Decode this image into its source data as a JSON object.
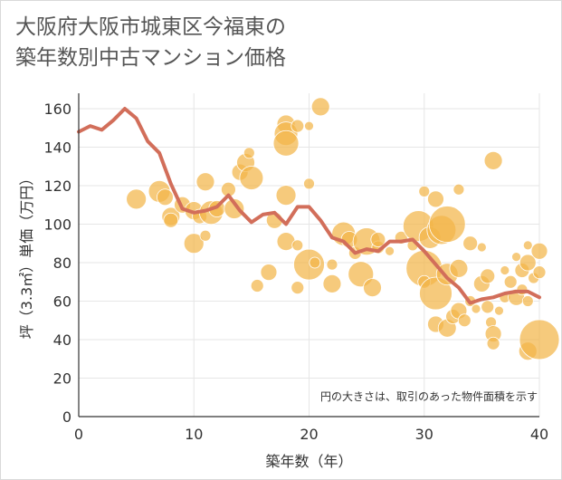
{
  "title_line1": "大阪府大阪市城東区今福東の",
  "title_line2": "築年数別中古マンション価格",
  "colors": {
    "bubble": "#f3b54a",
    "line": "#d26e5a",
    "grid": "#e6e6e6",
    "axis": "#333333"
  },
  "chart_data": {
    "type": "scatter",
    "title": "大阪府大阪市城東区今福東の 築年数別中古マンション価格",
    "xlabel": "築年数（年）",
    "ylabel": "坪（3.3㎡）単価（万円）",
    "xlim": [
      0,
      40
    ],
    "ylim": [
      0,
      168
    ],
    "xticks": [
      "0",
      "10",
      "20",
      "30",
      "40"
    ],
    "yticks": [
      "0",
      "20",
      "40",
      "60",
      "80",
      "100",
      "120",
      "140",
      "160"
    ],
    "grid": true,
    "annotation": "円の大きさは、取引のあった物件面積を示す",
    "line_series": {
      "x": [
        0,
        1,
        2,
        3,
        4,
        5,
        6,
        7,
        8,
        9,
        10,
        11,
        12,
        13,
        14,
        15,
        16,
        17,
        18,
        19,
        20,
        21,
        22,
        23,
        24,
        25,
        26,
        27,
        28,
        29,
        30,
        31,
        32,
        33,
        34,
        35,
        36,
        37,
        38,
        39,
        40
      ],
      "y": [
        148,
        151,
        149,
        154,
        160,
        155,
        143,
        137,
        121,
        108,
        106,
        107,
        109,
        115,
        107,
        101,
        105,
        106,
        100,
        109,
        109,
        102,
        93,
        91,
        85,
        87,
        86,
        91,
        91,
        92,
        86,
        79,
        72,
        67,
        59,
        61,
        62,
        64,
        65,
        65,
        62
      ]
    },
    "bubbles": [
      {
        "x": 5,
        "y": 113,
        "s": 11
      },
      {
        "x": 7,
        "y": 117,
        "s": 12
      },
      {
        "x": 7.5,
        "y": 114,
        "s": 9
      },
      {
        "x": 8,
        "y": 104,
        "s": 10
      },
      {
        "x": 8,
        "y": 102,
        "s": 8
      },
      {
        "x": 9,
        "y": 110,
        "s": 9
      },
      {
        "x": 10,
        "y": 107,
        "s": 10
      },
      {
        "x": 10,
        "y": 90,
        "s": 11
      },
      {
        "x": 10.5,
        "y": 104,
        "s": 8
      },
      {
        "x": 11,
        "y": 122,
        "s": 10
      },
      {
        "x": 11,
        "y": 94,
        "s": 6
      },
      {
        "x": 11.5,
        "y": 106,
        "s": 13
      },
      {
        "x": 12,
        "y": 108,
        "s": 9
      },
      {
        "x": 13,
        "y": 118,
        "s": 8
      },
      {
        "x": 13.5,
        "y": 108,
        "s": 11
      },
      {
        "x": 14,
        "y": 127,
        "s": 9
      },
      {
        "x": 14.5,
        "y": 132,
        "s": 10
      },
      {
        "x": 14.8,
        "y": 137,
        "s": 6
      },
      {
        "x": 15,
        "y": 124,
        "s": 13
      },
      {
        "x": 15.5,
        "y": 68,
        "s": 7
      },
      {
        "x": 16.5,
        "y": 75,
        "s": 9
      },
      {
        "x": 17,
        "y": 102,
        "s": 9
      },
      {
        "x": 18,
        "y": 152,
        "s": 10
      },
      {
        "x": 18,
        "y": 147,
        "s": 13
      },
      {
        "x": 18,
        "y": 142,
        "s": 14
      },
      {
        "x": 18,
        "y": 115,
        "s": 11
      },
      {
        "x": 18,
        "y": 91,
        "s": 10
      },
      {
        "x": 19,
        "y": 151,
        "s": 7
      },
      {
        "x": 19,
        "y": 89,
        "s": 6
      },
      {
        "x": 19,
        "y": 67,
        "s": 7
      },
      {
        "x": 20,
        "y": 151,
        "s": 5
      },
      {
        "x": 20,
        "y": 121,
        "s": 6
      },
      {
        "x": 20,
        "y": 79,
        "s": 17
      },
      {
        "x": 20.5,
        "y": 80,
        "s": 6
      },
      {
        "x": 21,
        "y": 161,
        "s": 10
      },
      {
        "x": 22,
        "y": 69,
        "s": 10
      },
      {
        "x": 22,
        "y": 79,
        "s": 6
      },
      {
        "x": 23,
        "y": 95,
        "s": 13
      },
      {
        "x": 23.5,
        "y": 92,
        "s": 9
      },
      {
        "x": 24,
        "y": 85,
        "s": 7
      },
      {
        "x": 24.5,
        "y": 74,
        "s": 14
      },
      {
        "x": 25,
        "y": 91,
        "s": 15
      },
      {
        "x": 25.5,
        "y": 67,
        "s": 10
      },
      {
        "x": 26,
        "y": 88,
        "s": 7
      },
      {
        "x": 26,
        "y": 92,
        "s": 8
      },
      {
        "x": 27,
        "y": 86,
        "s": 5
      },
      {
        "x": 28,
        "y": 93,
        "s": 7
      },
      {
        "x": 29,
        "y": 89,
        "s": 6
      },
      {
        "x": 29.5,
        "y": 99,
        "s": 17
      },
      {
        "x": 30,
        "y": 117,
        "s": 6
      },
      {
        "x": 30,
        "y": 77,
        "s": 20
      },
      {
        "x": 30,
        "y": 70,
        "s": 7
      },
      {
        "x": 30.5,
        "y": 93,
        "s": 12
      },
      {
        "x": 31,
        "y": 113,
        "s": 9
      },
      {
        "x": 31,
        "y": 64,
        "s": 18
      },
      {
        "x": 31,
        "y": 48,
        "s": 9
      },
      {
        "x": 31.5,
        "y": 97,
        "s": 16
      },
      {
        "x": 32,
        "y": 100,
        "s": 20
      },
      {
        "x": 32,
        "y": 74,
        "s": 12
      },
      {
        "x": 32,
        "y": 46,
        "s": 10
      },
      {
        "x": 32.5,
        "y": 52,
        "s": 8
      },
      {
        "x": 33,
        "y": 118,
        "s": 6
      },
      {
        "x": 33,
        "y": 77,
        "s": 10
      },
      {
        "x": 33,
        "y": 55,
        "s": 9
      },
      {
        "x": 33.5,
        "y": 50,
        "s": 7
      },
      {
        "x": 34,
        "y": 90,
        "s": 8
      },
      {
        "x": 34,
        "y": 60,
        "s": 6
      },
      {
        "x": 34.5,
        "y": 56,
        "s": 5
      },
      {
        "x": 35,
        "y": 88,
        "s": 5
      },
      {
        "x": 35,
        "y": 69,
        "s": 9
      },
      {
        "x": 35.5,
        "y": 73,
        "s": 8
      },
      {
        "x": 35.5,
        "y": 57,
        "s": 7
      },
      {
        "x": 35.8,
        "y": 49,
        "s": 6
      },
      {
        "x": 36,
        "y": 133,
        "s": 10
      },
      {
        "x": 36,
        "y": 43,
        "s": 9
      },
      {
        "x": 36,
        "y": 38,
        "s": 7
      },
      {
        "x": 36.5,
        "y": 55,
        "s": 5
      },
      {
        "x": 37,
        "y": 76,
        "s": 5
      },
      {
        "x": 37,
        "y": 62,
        "s": 6
      },
      {
        "x": 37.5,
        "y": 70,
        "s": 7
      },
      {
        "x": 38,
        "y": 83,
        "s": 5
      },
      {
        "x": 38,
        "y": 62,
        "s": 9
      },
      {
        "x": 38.5,
        "y": 76,
        "s": 8
      },
      {
        "x": 38.5,
        "y": 66,
        "s": 6
      },
      {
        "x": 39,
        "y": 89,
        "s": 5
      },
      {
        "x": 39,
        "y": 80,
        "s": 9
      },
      {
        "x": 39,
        "y": 60,
        "s": 6
      },
      {
        "x": 39,
        "y": 34,
        "s": 10
      },
      {
        "x": 39.5,
        "y": 72,
        "s": 6
      },
      {
        "x": 40,
        "y": 86,
        "s": 9
      },
      {
        "x": 40,
        "y": 40,
        "s": 22
      },
      {
        "x": 40,
        "y": 75,
        "s": 7
      }
    ]
  }
}
